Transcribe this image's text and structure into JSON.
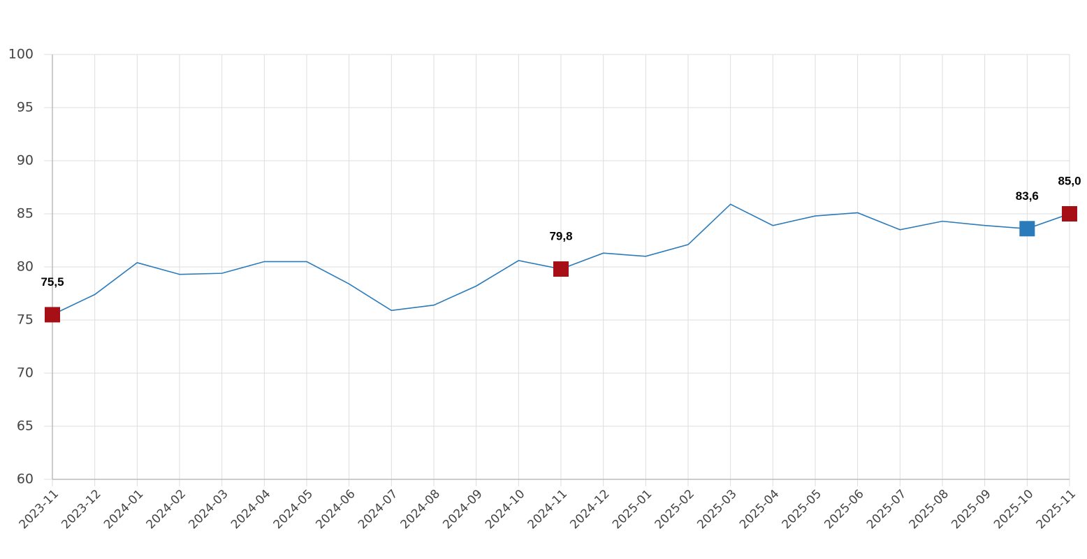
{
  "chart_data": {
    "type": "line",
    "categories": [
      "2023-11",
      "2023-12",
      "2024-01",
      "2024-02",
      "2024-03",
      "2024-04",
      "2024-05",
      "2024-06",
      "2024-07",
      "2024-08",
      "2024-09",
      "2024-10",
      "2024-11",
      "2024-12",
      "2025-01",
      "2025-02",
      "2025-03",
      "2025-04",
      "2025-05",
      "2025-06",
      "2025-07",
      "2025-08",
      "2025-09",
      "2025-10",
      "2025-11"
    ],
    "values": [
      75.5,
      77.4,
      80.4,
      79.3,
      79.4,
      80.5,
      80.5,
      78.4,
      75.9,
      76.4,
      78.2,
      80.6,
      79.8,
      81.3,
      81.0,
      82.1,
      85.9,
      83.9,
      84.8,
      85.1,
      83.5,
      84.3,
      83.9,
      83.6,
      85.0
    ],
    "value_labels": [
      "75,5",
      null,
      null,
      null,
      null,
      null,
      null,
      null,
      null,
      null,
      null,
      null,
      "79,8",
      null,
      null,
      null,
      null,
      null,
      null,
      null,
      null,
      null,
      null,
      "83,6",
      "85,0"
    ],
    "marker_colors": [
      "#a50f15",
      null,
      null,
      null,
      null,
      null,
      null,
      null,
      null,
      null,
      null,
      null,
      "#a50f15",
      null,
      null,
      null,
      null,
      null,
      null,
      null,
      null,
      null,
      null,
      "#2b7bba",
      "#a50f15"
    ],
    "color": "#2b7bba",
    "ylim": [
      60,
      100
    ],
    "yticks": [
      60,
      65,
      70,
      75,
      80,
      85,
      90,
      95,
      100
    ],
    "grid": true
  }
}
